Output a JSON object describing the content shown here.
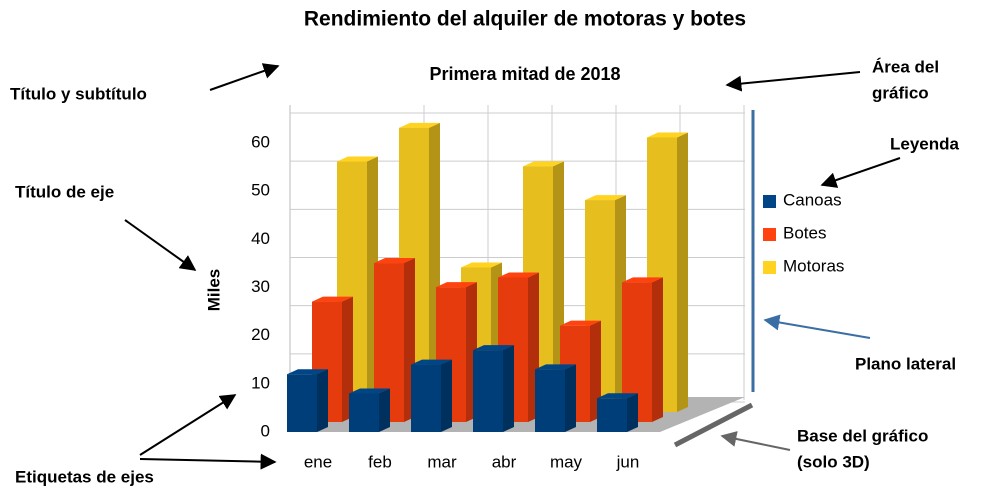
{
  "chart_data": {
    "type": "bar3d",
    "title": "Rendimiento del alquiler de motoras y botes",
    "subtitle": "Primera mitad de 2018",
    "y_label": "Miles",
    "categories": [
      "ene",
      "feb",
      "mar",
      "abr",
      "may",
      "jun"
    ],
    "series": [
      {
        "name": "Canoas",
        "color": "#004586",
        "values": [
          12,
          8,
          14,
          17,
          13,
          7
        ]
      },
      {
        "name": "Botes",
        "color": "#ff420e",
        "values": [
          25,
          33,
          28,
          30,
          20,
          29
        ]
      },
      {
        "name": "Motoras",
        "color": "#ffd320",
        "values": [
          52,
          59,
          30,
          51,
          44,
          57
        ]
      }
    ],
    "ylim": [
      0,
      60
    ],
    "yticks": [
      0,
      10,
      20,
      30,
      40,
      50,
      60
    ],
    "grid": true,
    "legend": "right",
    "annotations": [
      [
        "Título y subtítulo"
      ],
      [
        "Área del",
        "gráfico"
      ],
      [
        "Leyenda"
      ],
      [
        "Título de eje"
      ],
      [
        "Plano lateral"
      ],
      [
        "Base del gráfico",
        "(solo 3D)"
      ],
      [
        "Etiquetas de ejes"
      ]
    ]
  }
}
